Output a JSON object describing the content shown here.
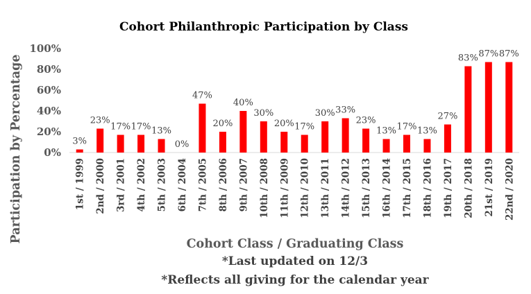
{
  "chart_data": {
    "type": "bar",
    "title": "Cohort Philanthropic Participation by Class",
    "xlabel": "Cohort Class / Graduating Class",
    "ylabel": "Participation by Percentage",
    "notes": [
      "*Last updated on 12/3",
      "*Reflects all giving for the calendar  year"
    ],
    "ylim": [
      0,
      100
    ],
    "yticks": [
      "0%",
      "20%",
      "40%",
      "60%",
      "80%",
      "100%"
    ],
    "grid": false,
    "categories": [
      "1st / 1999",
      "2nd / 2000",
      "3rd / 2001",
      "4th / 2002",
      "5th / 2003",
      "6th / 2004",
      "7th / 2005",
      "8th / 2006",
      "9th / 2007",
      "10th / 2008",
      "11th / 2009",
      "12th / 2010",
      "13th / 2011",
      "14th / 2012",
      "15th / 2013",
      "16th / 2014",
      "17th / 2015",
      "18th / 2016",
      "19th / 2017",
      "20th / 2018",
      "21st / 2019",
      "22nd / 2020"
    ],
    "values": [
      3,
      23,
      17,
      17,
      13,
      0,
      47,
      20,
      40,
      30,
      20,
      17,
      30,
      33,
      23,
      13,
      17,
      13,
      27,
      83,
      87,
      87
    ],
    "data_labels": [
      "3%",
      "23%",
      "17%",
      "17%",
      "13%",
      "0%",
      "47%",
      "20%",
      "40%",
      "30%",
      "20%",
      "17%",
      "30%",
      "33%",
      "23%",
      "13%",
      "17%",
      "13%",
      "27%",
      "83%",
      "87%",
      "87%"
    ],
    "bar_color": "#ff0000"
  }
}
